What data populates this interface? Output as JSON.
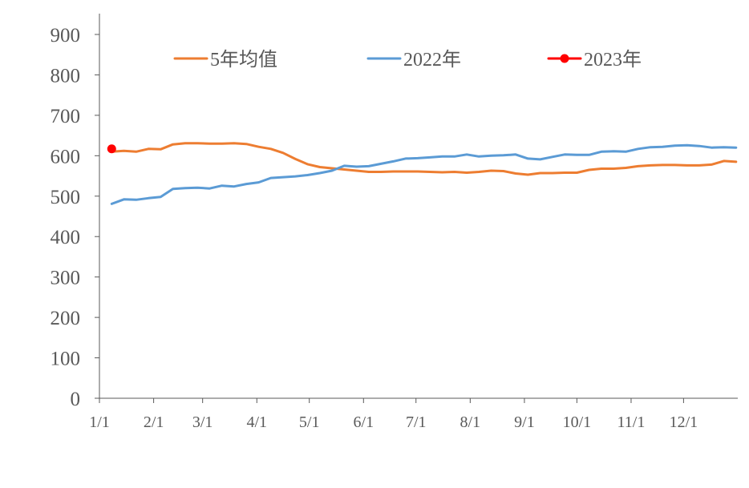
{
  "chart_data": {
    "type": "line",
    "title": "",
    "xlabel": "",
    "ylabel": "",
    "ylim": [
      0,
      900
    ],
    "yticks": [
      0,
      100,
      200,
      300,
      400,
      500,
      600,
      700,
      800,
      900
    ],
    "xticks": [
      "1/1",
      "2/1",
      "3/1",
      "4/1",
      "5/1",
      "6/1",
      "7/1",
      "8/1",
      "9/1",
      "10/1",
      "11/1",
      "12/1"
    ],
    "grid": false,
    "legend_position": "top",
    "series": [
      {
        "name": "5年均值",
        "color": "#ED7D31",
        "x": [
          "1/8",
          "1/15",
          "1/22",
          "1/29",
          "2/5",
          "2/12",
          "2/19",
          "2/26",
          "3/5",
          "3/12",
          "3/19",
          "3/26",
          "4/2",
          "4/9",
          "4/16",
          "4/23",
          "4/30",
          "5/7",
          "5/14",
          "5/21",
          "5/28",
          "6/4",
          "6/11",
          "6/18",
          "6/25",
          "7/2",
          "7/9",
          "7/16",
          "7/23",
          "7/30",
          "8/6",
          "8/13",
          "8/20",
          "8/27",
          "9/3",
          "9/10",
          "9/17",
          "9/24",
          "10/1",
          "10/8",
          "10/15",
          "10/22",
          "10/29",
          "11/5",
          "11/12",
          "11/19",
          "11/26",
          "12/3",
          "12/10",
          "12/17",
          "12/24",
          "12/31"
        ],
        "values": [
          610,
          612,
          610,
          617,
          616,
          628,
          631,
          631,
          630,
          630,
          631,
          629,
          622,
          617,
          607,
          592,
          579,
          572,
          569,
          566,
          563,
          560,
          560,
          561,
          561,
          561,
          560,
          559,
          560,
          558,
          560,
          563,
          562,
          556,
          553,
          557,
          557,
          558,
          558,
          565,
          568,
          568,
          570,
          574,
          576,
          577,
          577,
          576,
          576,
          578,
          587,
          585
        ]
      },
      {
        "name": "2022年",
        "color": "#5B9BD5",
        "x": [
          "1/8",
          "1/15",
          "1/22",
          "1/29",
          "2/5",
          "2/12",
          "2/19",
          "2/26",
          "3/5",
          "3/12",
          "3/19",
          "3/26",
          "4/2",
          "4/9",
          "4/16",
          "4/23",
          "4/30",
          "5/7",
          "5/14",
          "5/21",
          "5/28",
          "6/4",
          "6/11",
          "6/18",
          "6/25",
          "7/2",
          "7/9",
          "7/16",
          "7/23",
          "7/30",
          "8/6",
          "8/13",
          "8/20",
          "8/27",
          "9/3",
          "9/10",
          "9/17",
          "9/24",
          "10/1",
          "10/8",
          "10/15",
          "10/22",
          "10/29",
          "11/5",
          "11/12",
          "11/19",
          "11/26",
          "12/3",
          "12/10",
          "12/17",
          "12/24",
          "12/31"
        ],
        "values": [
          481,
          492,
          491,
          495,
          498,
          518,
          520,
          521,
          519,
          526,
          524,
          530,
          534,
          545,
          547,
          549,
          552,
          557,
          563,
          575,
          573,
          574,
          580,
          586,
          593,
          594,
          596,
          598,
          598,
          603,
          598,
          600,
          601,
          603,
          593,
          591,
          597,
          603,
          602,
          602,
          610,
          611,
          610,
          617,
          621,
          622,
          625,
          626,
          624,
          620,
          621,
          620
        ]
      },
      {
        "name": "2023年",
        "color": "#FF0000",
        "marker": "circle",
        "x": [
          "1/8"
        ],
        "values": [
          617
        ]
      }
    ]
  }
}
